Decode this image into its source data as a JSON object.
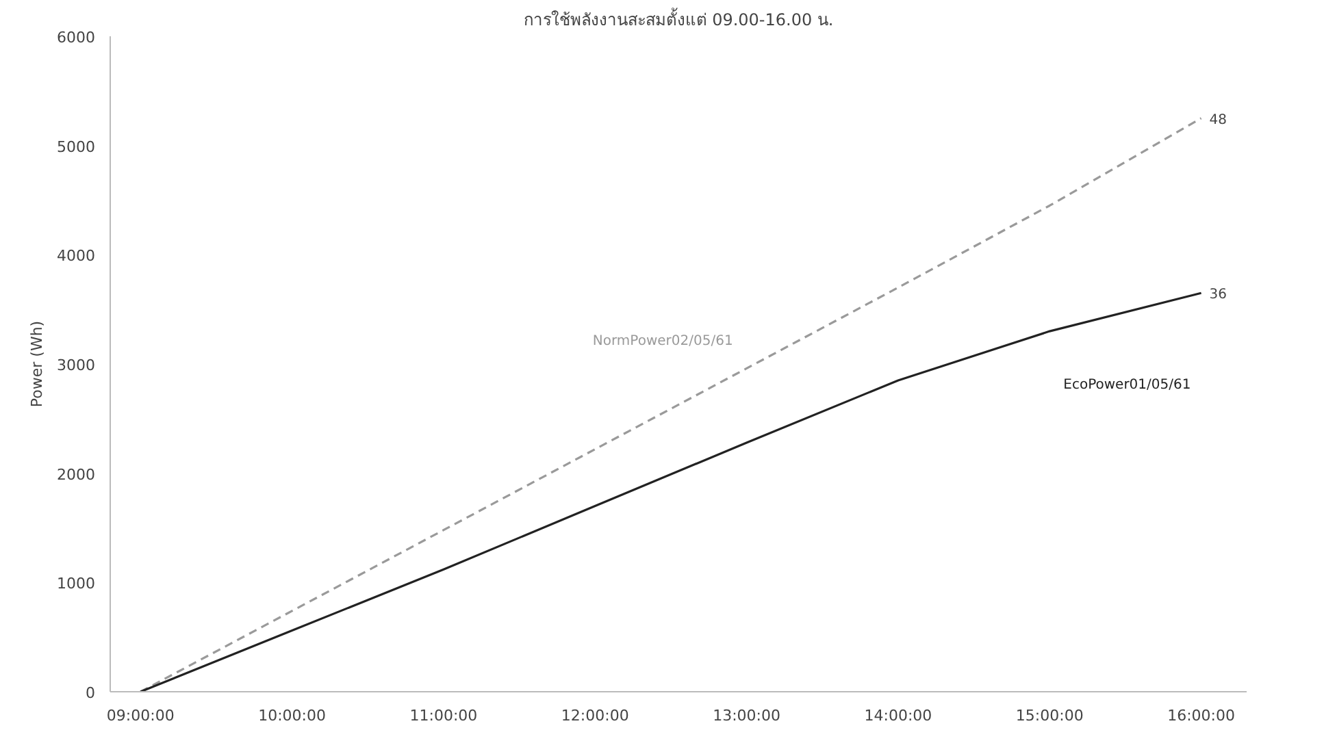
{
  "chart_data": {
    "type": "line",
    "title": "การใช้พลังงานสะสมตั้งแต่ 09.00-16.00 น.",
    "ylabel": "Power (Wh)",
    "x": [
      9,
      10,
      11,
      12,
      13,
      14,
      15,
      16
    ],
    "series": [
      {
        "name": "NormPower02/05/61",
        "color": "#9a9a9a",
        "line_style": "dashed",
        "values": [
          0,
          740,
          1480,
          2220,
          2960,
          3700,
          4450,
          5250
        ]
      },
      {
        "name": "EcoPower01/05/61",
        "color": "#222222",
        "line_style": "solid",
        "values": [
          0,
          560,
          1120,
          1700,
          2280,
          2850,
          3300,
          3650
        ]
      }
    ],
    "annotations": [
      {
        "text": "48",
        "x": 16,
        "y": 5250
      },
      {
        "text": "36",
        "x": 16,
        "y": 3650
      }
    ],
    "xlim": [
      8.8,
      16.3
    ],
    "ylim": [
      0,
      6000
    ],
    "xticks": [
      {
        "value": 9,
        "label": "09:00:00"
      },
      {
        "value": 10,
        "label": "10:00:00"
      },
      {
        "value": 11,
        "label": "11:00:00"
      },
      {
        "value": 12,
        "label": "12:00:00"
      },
      {
        "value": 13,
        "label": "13:00:00"
      },
      {
        "value": 14,
        "label": "14:00:00"
      },
      {
        "value": 15,
        "label": "15:00:00"
      },
      {
        "value": 16,
        "label": "16:00:00"
      }
    ],
    "yticks": [
      0,
      1000,
      2000,
      3000,
      4000,
      5000,
      6000
    ],
    "grid": false,
    "marker": "none"
  }
}
